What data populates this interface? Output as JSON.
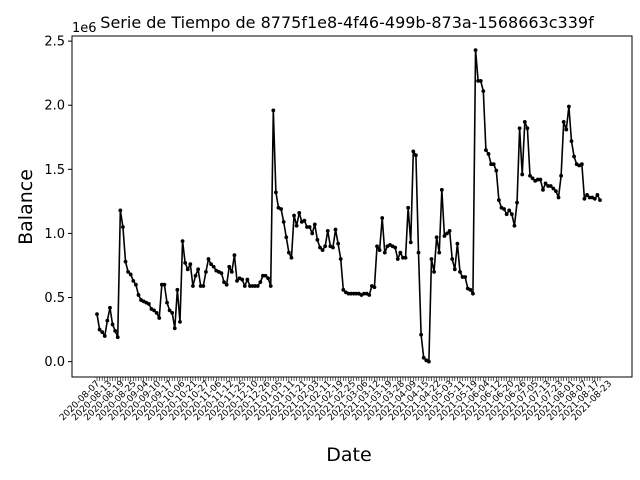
{
  "chart_data": {
    "type": "line",
    "title": "Serie de Tiempo de 8775f1e8-4f46-499b-873a-1568663c339f",
    "xlabel": "Date",
    "ylabel": "Balance",
    "y_offset_label": "1e6",
    "ylim": [
      -120000,
      2540000
    ],
    "y_ticks": [
      0.0,
      0.5,
      1.0,
      1.5,
      2.0,
      2.5
    ],
    "y_tick_labels": [
      "0.0",
      "0.5",
      "1.0",
      "1.5",
      "2.0",
      "2.5"
    ],
    "x_tick_labels": [
      "2020-08-07",
      "2020-08-13",
      "2020-08-19",
      "2020-08-25",
      "2020-09-04",
      "2020-09-10",
      "2020-09-17",
      "2020-10-06",
      "2020-10-21",
      "2020-10-27",
      "2020-11-06",
      "2020-11-12",
      "2020-11-25",
      "2020-12-10",
      "2020-12-26",
      "2021-01-05",
      "2021-01-11",
      "2021-01-21",
      "2021-02-03",
      "2021-02-11",
      "2021-02-19",
      "2021-02-25",
      "2021-03-06",
      "2021-03-12",
      "2021-03-19",
      "2021-03-28",
      "2021-04-09",
      "2021-04-15",
      "2021-04-22",
      "2021-05-03",
      "2021-05-11",
      "2021-05-19",
      "2021-06-04",
      "2021-06-12",
      "2021-06-20",
      "2021-06-26",
      "2021-07-05",
      "2021-07-13",
      "2021-07-23",
      "2021-08-01",
      "2021-08-07",
      "2021-08-17",
      "2021-08-23"
    ],
    "series": [
      {
        "values": [
          370000,
          250000,
          230000,
          200000,
          320000,
          420000,
          290000,
          240000,
          190000,
          1180000,
          1050000,
          780000,
          700000,
          680000,
          630000,
          600000,
          520000,
          480000,
          470000,
          460000,
          450000,
          410000,
          400000,
          380000,
          340000,
          600000,
          600000,
          460000,
          400000,
          380000,
          260000,
          560000,
          310000,
          940000,
          770000,
          720000,
          760000,
          590000,
          670000,
          720000,
          590000,
          590000,
          700000,
          800000,
          760000,
          740000,
          710000,
          700000,
          690000,
          620000,
          600000,
          740000,
          700000,
          830000,
          630000,
          650000,
          640000,
          590000,
          640000,
          590000,
          590000,
          590000,
          590000,
          620000,
          670000,
          670000,
          650000,
          590000,
          1960000,
          1320000,
          1200000,
          1190000,
          1090000,
          970000,
          850000,
          810000,
          1140000,
          1060000,
          1160000,
          1090000,
          1100000,
          1050000,
          1050000,
          1000000,
          1070000,
          950000,
          890000,
          870000,
          900000,
          1020000,
          900000,
          890000,
          1030000,
          920000,
          800000,
          560000,
          540000,
          530000,
          530000,
          530000,
          530000,
          530000,
          520000,
          530000,
          530000,
          520000,
          590000,
          580000,
          900000,
          870000,
          1120000,
          850000,
          900000,
          910000,
          900000,
          890000,
          800000,
          850000,
          810000,
          810000,
          1200000,
          930000,
          1640000,
          1610000,
          850000,
          210000,
          30000,
          10000,
          0,
          800000,
          700000,
          970000,
          850000,
          1340000,
          980000,
          1000000,
          1020000,
          800000,
          720000,
          920000,
          700000,
          660000,
          660000,
          570000,
          560000,
          530000,
          2430000,
          2190000,
          2190000,
          2110000,
          1650000,
          1620000,
          1540000,
          1540000,
          1490000,
          1260000,
          1200000,
          1190000,
          1150000,
          1180000,
          1150000,
          1060000,
          1240000,
          1820000,
          1460000,
          1870000,
          1820000,
          1450000,
          1430000,
          1410000,
          1420000,
          1420000,
          1340000,
          1390000,
          1370000,
          1370000,
          1350000,
          1330000,
          1280000,
          1450000,
          1870000,
          1810000,
          1990000,
          1720000,
          1600000,
          1540000,
          1530000,
          1540000,
          1270000,
          1300000,
          1280000,
          1280000,
          1270000,
          1300000,
          1260000
        ]
      }
    ],
    "line_color": "#000000",
    "marker": "dot",
    "grid": false,
    "legend": false
  }
}
